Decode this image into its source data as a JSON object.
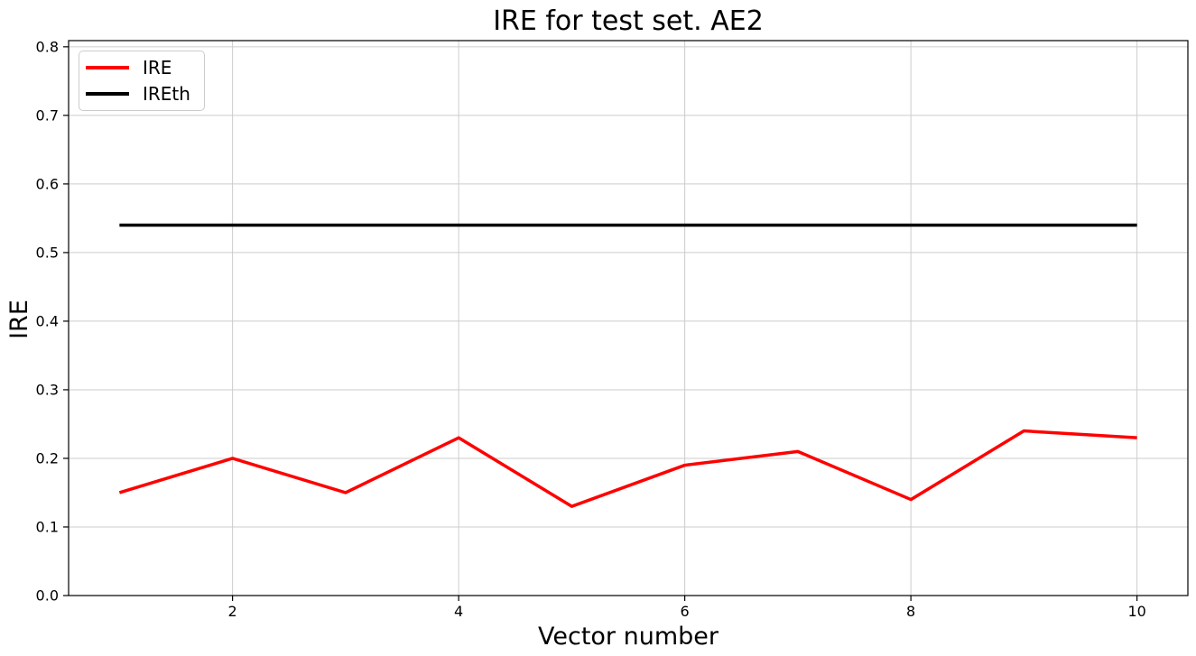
{
  "chart_data": {
    "type": "line",
    "title": "IRE for test set. AE2",
    "xlabel": "Vector number",
    "ylabel": "IRE",
    "x": [
      1,
      2,
      3,
      4,
      5,
      6,
      7,
      8,
      9,
      10
    ],
    "series": [
      {
        "name": "IRE",
        "color": "#ff0000",
        "values": [
          0.15,
          0.2,
          0.15,
          0.23,
          0.13,
          0.19,
          0.21,
          0.14,
          0.24,
          0.23
        ]
      },
      {
        "name": "IREth",
        "color": "#000000",
        "values": [
          0.54,
          0.54,
          0.54,
          0.54,
          0.54,
          0.54,
          0.54,
          0.54,
          0.54,
          0.54
        ]
      }
    ],
    "xlim": [
      0.55,
      10.45
    ],
    "ylim": [
      0,
      0.809
    ],
    "xticks": [
      2,
      4,
      6,
      8,
      10
    ],
    "yticks": [
      0.0,
      0.1,
      0.2,
      0.3,
      0.4,
      0.5,
      0.6,
      0.7,
      0.8
    ],
    "grid": true,
    "grid_color": "#cccccc",
    "spine_color": "#000000",
    "legend_position": "upper left"
  }
}
